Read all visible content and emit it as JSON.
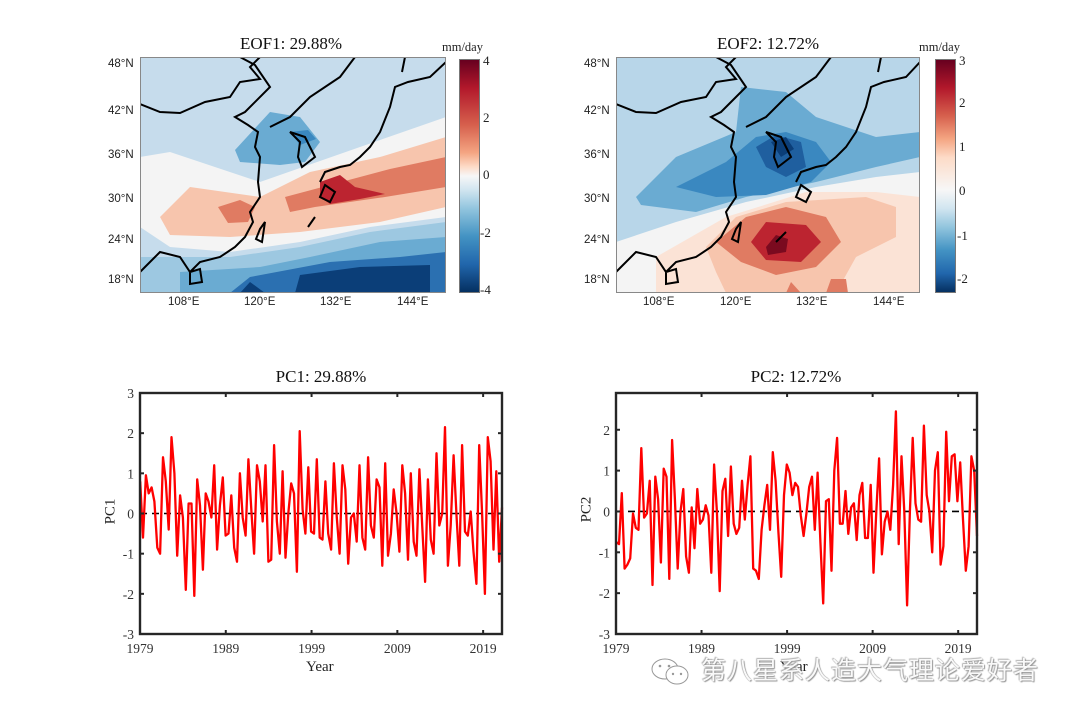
{
  "chart_data": [
    {
      "type": "heatmap",
      "panel": "EOF1",
      "title": "EOF1: 29.88%",
      "colorbar_label": "mm/day",
      "colorbar_ticks": [
        "4",
        "2",
        "0",
        "-2",
        "-4"
      ],
      "colorbar_range": [
        -4,
        4
      ],
      "colormap": "RdBu_r",
      "lat_ticks": [
        "48°N",
        "42°N",
        "36°N",
        "30°N",
        "24°N",
        "18°N"
      ],
      "lon_ticks": [
        "108°E",
        "120°E",
        "132°E",
        "144°E"
      ],
      "lon_range": [
        102,
        150
      ],
      "lat_range": [
        16,
        49
      ],
      "pattern": "tripole: negative over Korea/north China (~-1.5), positive band 26-34°N from east China to east of Japan (max ~3 near Kyushu 131-138°E, 30-32°N), strong negative south of 24°N (min ~-4 near 130-146°E, 17-20°N)"
    },
    {
      "type": "heatmap",
      "panel": "EOF2",
      "title": "EOF2: 12.72%",
      "colorbar_label": "mm/day",
      "colorbar_ticks": [
        "3",
        "2",
        "1",
        "0",
        "-1",
        "-2"
      ],
      "colorbar_range": [
        -2.3,
        3
      ],
      "colormap": "RdBu_r",
      "lat_ticks": [
        "48°N",
        "42°N",
        "36°N",
        "30°N",
        "24°N",
        "18°N"
      ],
      "lon_ticks": [
        "108°E",
        "120°E",
        "132°E",
        "144°E"
      ],
      "lon_range": [
        102,
        150
      ],
      "lat_range": [
        16,
        49
      ],
      "pattern": "dipole: negative north of 32°N (min ~-2 over Korea, 36-39°N), positive south (max ~2.8 near 126-130°E, 26-28°N)"
    },
    {
      "type": "line",
      "panel": "PC1",
      "title": "PC1: 29.88%",
      "xlabel": "Year",
      "ylabel": "PC1",
      "x_ticks": [
        "1979",
        "1989",
        "1999",
        "2009",
        "2019"
      ],
      "y_ticks": [
        "3",
        "2",
        "1",
        "0",
        "-1",
        "-2",
        "-3"
      ],
      "xlim": [
        1979,
        2021.2
      ],
      "ylim": [
        -3,
        3
      ],
      "zero_line": "dashed black",
      "series": [
        {
          "name": "PC1",
          "color": "#ff0000",
          "values": [
            0.8,
            -0.6,
            0.95,
            0.5,
            0.65,
            0.3,
            -0.85,
            -1.0,
            1.4,
            0.8,
            -0.4,
            1.9,
            1.0,
            -1.05,
            0.45,
            -0.1,
            -1.9,
            0.25,
            0.25,
            -2.05,
            0.85,
            0.2,
            -1.4,
            0.5,
            0.3,
            -0.1,
            1.2,
            -0.9,
            0.2,
            0.9,
            -0.55,
            -0.5,
            0.45,
            -0.85,
            -1.2,
            1.0,
            -0.1,
            -0.55,
            1.35,
            0.1,
            -1.0,
            1.2,
            0.8,
            -0.2,
            1.2,
            -1.2,
            -1.15,
            1.7,
            -0.2,
            -1.0,
            1.05,
            -1.1,
            0.0,
            0.75,
            0.5,
            -1.45,
            2.05,
            0.1,
            -0.5,
            1.15,
            -0.45,
            -0.5,
            1.35,
            -0.6,
            -0.65,
            0.8,
            -0.5,
            -0.9,
            1.25,
            -0.1,
            -1.0,
            1.2,
            0.6,
            -1.25,
            -0.1,
            0.0,
            -0.7,
            1.2,
            -0.6,
            -0.9,
            1.4,
            -0.3,
            -0.6,
            0.85,
            0.65,
            -1.3,
            1.25,
            -1.05,
            -0.5,
            0.6,
            0.0,
            -0.95,
            1.2,
            0.5,
            -1.15,
            1.0,
            -0.7,
            -1.05,
            1.1,
            -0.3,
            -1.7,
            0.85,
            -0.65,
            -1.0,
            1.5,
            -0.3,
            0.0,
            2.15,
            -1.3,
            -0.3,
            1.45,
            0.0,
            -1.3,
            1.7,
            -0.45,
            -0.55,
            0.05,
            -0.95,
            -1.75,
            1.7,
            0.0,
            -2.0,
            1.9,
            1.3,
            -0.9,
            1.05,
            -1.2,
            0.15
          ]
        }
      ]
    },
    {
      "type": "line",
      "panel": "PC2",
      "title": "PC2: 12.72%",
      "xlabel": "Year",
      "ylabel": "PC2",
      "x_ticks": [
        "1979",
        "1989",
        "1999",
        "2009",
        "2019"
      ],
      "y_ticks": [
        "2",
        "1",
        "0",
        "-1",
        "-2",
        "-3"
      ],
      "xlim": [
        1979,
        2021.2
      ],
      "ylim": [
        -3,
        2.9
      ],
      "zero_line": "dashed black",
      "series": [
        {
          "name": "PC2",
          "color": "#ff0000",
          "values": [
            -0.75,
            -0.8,
            0.45,
            -1.4,
            -1.3,
            -1.15,
            -0.05,
            -0.4,
            -0.45,
            1.55,
            -0.15,
            -0.05,
            0.75,
            -1.8,
            0.85,
            0.3,
            -1.25,
            1.05,
            0.85,
            -1.65,
            1.75,
            0.3,
            -1.4,
            0.0,
            0.55,
            -1.1,
            -1.5,
            0.1,
            -0.9,
            0.55,
            -0.3,
            -0.2,
            0.15,
            -0.1,
            -1.5,
            1.15,
            0.0,
            -1.95,
            0.5,
            0.8,
            -0.6,
            1.1,
            -0.3,
            -0.55,
            -0.4,
            0.75,
            -0.2,
            0.65,
            1.35,
            -1.4,
            -1.45,
            -1.65,
            -0.45,
            0.15,
            0.65,
            -0.45,
            1.45,
            0.75,
            -0.5,
            -1.6,
            0.4,
            1.15,
            0.95,
            0.4,
            0.7,
            0.6,
            -0.1,
            -0.6,
            -0.05,
            0.6,
            0.85,
            -0.45,
            0.95,
            -0.75,
            -2.25,
            0.25,
            0.3,
            -1.45,
            1.0,
            1.8,
            -0.3,
            -0.3,
            0.5,
            -0.55,
            0.1,
            0.2,
            -0.7,
            0.4,
            0.7,
            -0.65,
            -0.65,
            0.65,
            -1.5,
            0.0,
            1.3,
            -1.05,
            -0.25,
            0.0,
            -0.45,
            0.65,
            2.45,
            -0.8,
            1.35,
            0.0,
            -2.3,
            0.0,
            1.8,
            0.2,
            -0.2,
            -0.25,
            2.1,
            0.4,
            0.0,
            -1.0,
            1.0,
            1.45,
            -1.3,
            -0.85,
            1.95,
            0.25,
            1.35,
            1.4,
            0.25,
            1.2,
            -0.2,
            -1.45,
            -0.85,
            1.35,
            1.0,
            -0.6
          ]
        }
      ]
    }
  ],
  "watermark": "第八星系人造大气理论爱好者"
}
